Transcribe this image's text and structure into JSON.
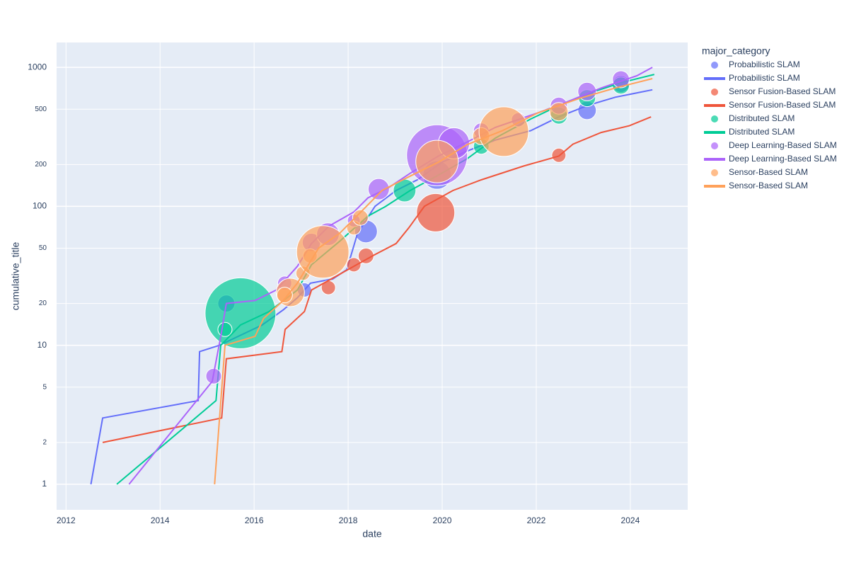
{
  "chart_data": {
    "type": "bubble-line",
    "x_label": "date",
    "y_label": "cumulative_title",
    "legend_title": "major_category",
    "xlim": [
      2011.8,
      2025.22
    ],
    "xticks": [
      2012,
      2014,
      2016,
      2018,
      2020,
      2022,
      2024
    ],
    "ylim": [
      0.655,
      1510
    ],
    "log_y": true,
    "yticks": [
      1,
      2,
      5,
      10,
      20,
      50,
      100,
      200,
      500,
      1000
    ],
    "grid": true,
    "legend": "right",
    "series": [
      {
        "name": "Probabilistic SLAM",
        "mode": "markers",
        "color": "#636efa",
        "x": [
          2015.41,
          2017.07,
          2018.38,
          2019.89,
          2023.08,
          2023.8
        ],
        "values": [
          20,
          25,
          66,
          168,
          490,
          760
        ],
        "sizes": [
          24,
          20,
          32,
          40,
          26,
          24
        ]
      },
      {
        "name": "Probabilistic SLAM",
        "mode": "lines",
        "color": "#636efa",
        "x": [
          2012.53,
          2012.78,
          2014.81,
          2014.84,
          2015.26,
          2016.17,
          2016.62,
          2016.92,
          2017.2,
          2017.67,
          2017.97,
          2018.2,
          2018.57,
          2019.02,
          2019.47,
          2020.0,
          2020.53,
          2021.13,
          2021.88,
          2022.48,
          2023.08,
          2023.68,
          2024.47
        ],
        "values": [
          1,
          3,
          4,
          9,
          10,
          14,
          18,
          22,
          28,
          30,
          35,
          64,
          100,
          130,
          155,
          208,
          250,
          300,
          350,
          440,
          530,
          610,
          690
        ]
      },
      {
        "name": "Sensor Fusion-Based SLAM",
        "mode": "markers",
        "color": "#EF553B",
        "x": [
          2018.12,
          2018.38,
          2017.58,
          2019.86,
          2022.48
        ],
        "values": [
          38,
          44,
          26,
          90,
          233
        ],
        "sizes": [
          20,
          22,
          20,
          54,
          20
        ]
      },
      {
        "name": "Sensor Fusion-Based SLAM",
        "mode": "lines",
        "color": "#EF553B",
        "x": [
          2012.78,
          2015.31,
          2015.41,
          2016.59,
          2016.66,
          2017.07,
          2017.22,
          2018.12,
          2018.57,
          2019.02,
          2019.29,
          2019.62,
          2020.23,
          2020.83,
          2021.73,
          2022.48,
          2022.78,
          2023.38,
          2023.98,
          2024.44
        ],
        "values": [
          2,
          3,
          8,
          9,
          13,
          17.5,
          25,
          37,
          45,
          54,
          70,
          100,
          130,
          155,
          195,
          230,
          280,
          340,
          380,
          440
        ]
      },
      {
        "name": "Distributed SLAM",
        "mode": "markers",
        "color": "#00cc96",
        "x": [
          2015.71,
          2015.38,
          2019.2,
          2020.83,
          2023.08,
          2023.8,
          2022.48
        ],
        "values": [
          17,
          13,
          130,
          270,
          600,
          740,
          450
        ],
        "sizes": [
          100,
          20,
          32,
          22,
          24,
          24,
          24
        ]
      },
      {
        "name": "Distributed SLAM",
        "mode": "lines",
        "color": "#00cc96",
        "x": [
          2013.08,
          2015.19,
          2015.29,
          2015.71,
          2016.32,
          2016.92,
          2017.22,
          2017.82,
          2018.42,
          2018.8,
          2019.32,
          2019.92,
          2020.53,
          2021.13,
          2021.88,
          2022.48,
          2023.23,
          2023.83,
          2024.51
        ],
        "values": [
          1,
          4,
          10,
          14,
          17.5,
          25,
          38,
          56,
          85,
          100,
          130,
          168,
          220,
          310,
          425,
          530,
          670,
          780,
          890
        ]
      },
      {
        "name": "Deep Learning-Based SLAM",
        "mode": "markers",
        "color": "#ab63fa",
        "x": [
          2015.14,
          2016.65,
          2017.22,
          2017.57,
          2018.12,
          2018.65,
          2019.89,
          2020.25,
          2020.83,
          2021.62,
          2022.48,
          2023.08,
          2023.8
        ],
        "values": [
          6,
          28,
          55,
          63,
          79,
          133,
          233,
          284,
          350,
          420,
          530,
          670,
          820
        ],
        "sizes": [
          22,
          20,
          26,
          32,
          18,
          30,
          86,
          44,
          22,
          20,
          24,
          26,
          24
        ]
      },
      {
        "name": "Deep Learning-Based SLAM",
        "mode": "lines",
        "color": "#ab63fa",
        "x": [
          2013.34,
          2015.11,
          2015.3,
          2015.41,
          2016.02,
          2016.47,
          2016.92,
          2017.22,
          2017.59,
          2018.12,
          2018.42,
          2018.87,
          2019.32,
          2019.92,
          2020.53,
          2021.13,
          2022.03,
          2022.63,
          2023.38,
          2024.14,
          2024.47
        ],
        "values": [
          1,
          5.5,
          12,
          20,
          21,
          25,
          37,
          54,
          72,
          91,
          115,
          137,
          173,
          230,
          290,
          370,
          470,
          560,
          710,
          870,
          1000
        ]
      },
      {
        "name": "Sensor-Based SLAM",
        "mode": "markers",
        "color": "#FFA15A",
        "x": [
          2016.77,
          2016.65,
          2017.04,
          2017.19,
          2017.46,
          2018.12,
          2018.26,
          2019.89,
          2020.83,
          2021.31,
          2022.48
        ],
        "values": [
          24,
          23,
          33,
          44,
          47,
          70,
          83,
          210,
          320,
          345,
          480
        ],
        "sizes": [
          40,
          22,
          20,
          20,
          74,
          20,
          22,
          60,
          24,
          70,
          26
        ]
      },
      {
        "name": "Sensor-Based SLAM",
        "mode": "lines",
        "color": "#FFA15A",
        "x": [
          2015.16,
          2015.38,
          2016.02,
          2016.2,
          2016.62,
          2016.92,
          2017.37,
          2017.82,
          2018.27,
          2018.72,
          2019.32,
          2019.92,
          2020.53,
          2021.28,
          2022.03,
          2022.93,
          2023.68,
          2024.47
        ],
        "values": [
          1,
          10,
          11.6,
          15.6,
          21,
          28,
          50,
          64,
          91,
          130,
          165,
          208,
          278,
          350,
          470,
          600,
          710,
          830
        ]
      }
    ]
  }
}
